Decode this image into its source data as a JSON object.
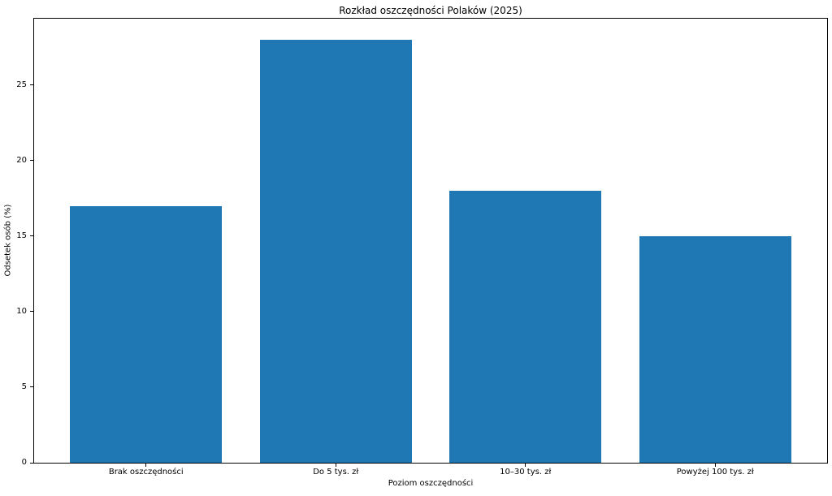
{
  "chart_data": {
    "type": "bar",
    "title": "Rozkład oszczędności Polaków (2025)",
    "xlabel": "Poziom oszczędności",
    "ylabel": "Odsetek osób (%)",
    "categories": [
      "Brak oszczędności",
      "Do 5 tys. zł",
      "10–30 tys. zł",
      "Powyżej 100 tys. zł"
    ],
    "values": [
      17,
      28,
      18,
      15
    ],
    "bar_color": "#1f77b4",
    "bar_width": 0.8,
    "xlim": [
      -0.59,
      3.59
    ],
    "ylim": [
      0,
      29.4
    ],
    "yticks": [
      0,
      5,
      10,
      15,
      20,
      25
    ],
    "grid": false,
    "legend_position": "none",
    "background_color": "#ffffff",
    "axis_color": "#000000",
    "text_color": "#000000"
  }
}
